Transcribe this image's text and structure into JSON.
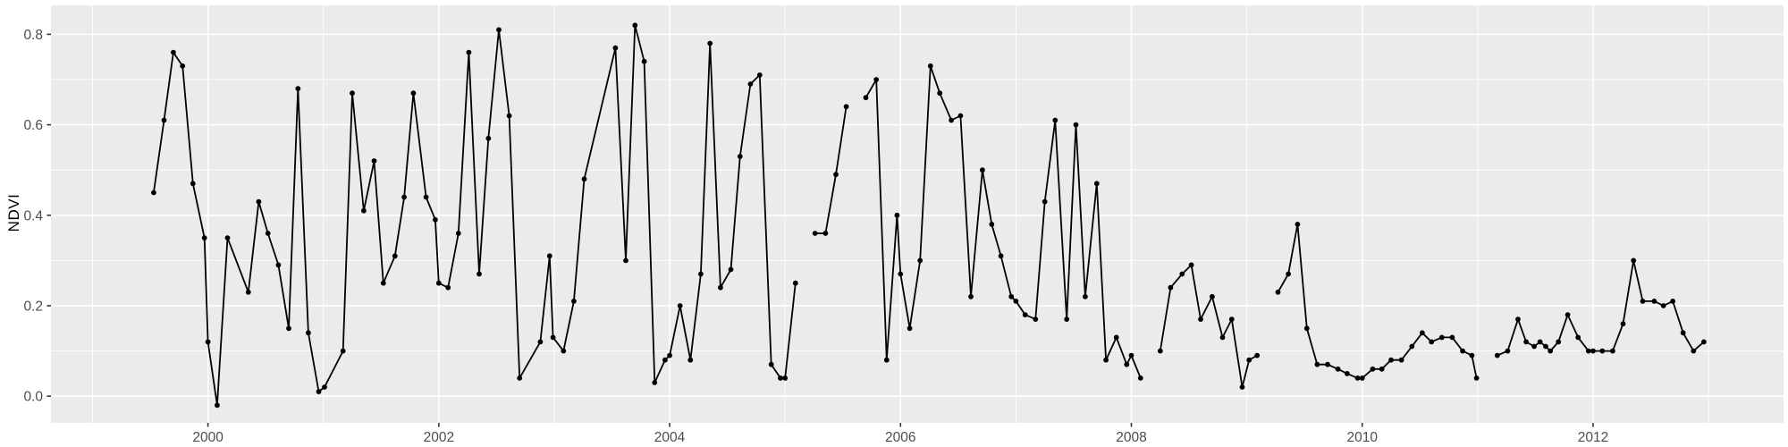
{
  "chart_data": {
    "type": "line",
    "title": "",
    "xlabel": "",
    "ylabel": "NDVI",
    "legend": false,
    "grid": true,
    "style": "ggplot2-gray-panel",
    "panel_background": "#EBEBEB",
    "grid_major_color": "#FFFFFF",
    "grid_minor_color": "#FFFFFF",
    "tick_mark_color": "#333333",
    "tick_label_color": "#4D4D4D",
    "axis_title_color": "#000000",
    "point_color": "#000000",
    "line_color": "#000000",
    "xlim": [
      1998.64,
      2013.65
    ],
    "ylim": [
      -0.059,
      0.864
    ],
    "x_ticks": [
      2000,
      2002,
      2004,
      2006,
      2008,
      2010,
      2012
    ],
    "x_tick_labels": [
      "2000",
      "2002",
      "2004",
      "2006",
      "2008",
      "2010",
      "2012"
    ],
    "x_minor_ticks": [
      1999,
      2001,
      2003,
      2005,
      2007,
      2009,
      2011,
      2013
    ],
    "y_ticks": [
      0.0,
      0.2,
      0.4,
      0.6,
      0.8
    ],
    "y_tick_labels": [
      "0.0",
      "0.2",
      "0.4",
      "0.6",
      "0.8"
    ],
    "y_minor_ticks": [
      0.1,
      0.3,
      0.5,
      0.7
    ],
    "series": [
      {
        "name": "NDVI",
        "segments": [
          [
            [
              1999.53,
              0.45
            ],
            [
              1999.62,
              0.61
            ],
            [
              1999.7,
              0.76
            ],
            [
              1999.78,
              0.73
            ],
            [
              1999.87,
              0.47
            ],
            [
              1999.97,
              0.35
            ],
            [
              2000.0,
              0.12
            ],
            [
              2000.08,
              -0.02
            ],
            [
              2000.17,
              0.35
            ],
            [
              2000.35,
              0.23
            ],
            [
              2000.44,
              0.43
            ],
            [
              2000.52,
              0.36
            ],
            [
              2000.61,
              0.29
            ],
            [
              2000.7,
              0.15
            ],
            [
              2000.78,
              0.68
            ],
            [
              2000.87,
              0.14
            ],
            [
              2000.96,
              0.01
            ],
            [
              2001.01,
              0.02
            ],
            [
              2001.17,
              0.1
            ],
            [
              2001.25,
              0.67
            ],
            [
              2001.35,
              0.41
            ],
            [
              2001.44,
              0.52
            ],
            [
              2001.52,
              0.25
            ],
            [
              2001.62,
              0.31
            ],
            [
              2001.7,
              0.44
            ],
            [
              2001.78,
              0.67
            ],
            [
              2001.89,
              0.44
            ],
            [
              2001.97,
              0.39
            ],
            [
              2002.0,
              0.25
            ],
            [
              2002.08,
              0.24
            ],
            [
              2002.17,
              0.36
            ],
            [
              2002.26,
              0.76
            ],
            [
              2002.35,
              0.27
            ],
            [
              2002.43,
              0.57
            ],
            [
              2002.52,
              0.81
            ],
            [
              2002.61,
              0.62
            ],
            [
              2002.7,
              0.04
            ],
            [
              2002.88,
              0.12
            ],
            [
              2002.96,
              0.31
            ],
            [
              2002.99,
              0.13
            ],
            [
              2003.08,
              0.1
            ],
            [
              2003.17,
              0.21
            ],
            [
              2003.26,
              0.48
            ],
            [
              2003.53,
              0.77
            ],
            [
              2003.62,
              0.3
            ],
            [
              2003.7,
              0.82
            ],
            [
              2003.78,
              0.74
            ],
            [
              2003.87,
              0.03
            ],
            [
              2003.96,
              0.08
            ],
            [
              2004.0,
              0.09
            ],
            [
              2004.09,
              0.2
            ],
            [
              2004.18,
              0.08
            ],
            [
              2004.27,
              0.27
            ],
            [
              2004.35,
              0.78
            ],
            [
              2004.44,
              0.24
            ],
            [
              2004.53,
              0.28
            ],
            [
              2004.61,
              0.53
            ],
            [
              2004.7,
              0.69
            ],
            [
              2004.78,
              0.71
            ],
            [
              2004.88,
              0.07
            ],
            [
              2004.96,
              0.04
            ],
            [
              2005.0,
              0.04
            ],
            [
              2005.09,
              0.25
            ]
          ],
          [
            [
              2005.26,
              0.36
            ],
            [
              2005.35,
              0.36
            ],
            [
              2005.44,
              0.49
            ],
            [
              2005.53,
              0.64
            ]
          ],
          [
            [
              2005.7,
              0.66
            ],
            [
              2005.79,
              0.7
            ],
            [
              2005.88,
              0.08
            ],
            [
              2005.97,
              0.4
            ],
            [
              2006.0,
              0.27
            ],
            [
              2006.08,
              0.15
            ],
            [
              2006.17,
              0.3
            ],
            [
              2006.26,
              0.73
            ],
            [
              2006.34,
              0.67
            ],
            [
              2006.44,
              0.61
            ],
            [
              2006.52,
              0.62
            ],
            [
              2006.61,
              0.22
            ],
            [
              2006.71,
              0.5
            ],
            [
              2006.79,
              0.38
            ],
            [
              2006.87,
              0.31
            ],
            [
              2006.96,
              0.22
            ],
            [
              2007.0,
              0.21
            ],
            [
              2007.08,
              0.18
            ],
            [
              2007.17,
              0.17
            ],
            [
              2007.25,
              0.43
            ],
            [
              2007.34,
              0.61
            ],
            [
              2007.44,
              0.17
            ],
            [
              2007.52,
              0.6
            ],
            [
              2007.6,
              0.22
            ],
            [
              2007.7,
              0.47
            ],
            [
              2007.78,
              0.08
            ],
            [
              2007.87,
              0.13
            ],
            [
              2007.96,
              0.07
            ],
            [
              2008.0,
              0.09
            ],
            [
              2008.08,
              0.04
            ]
          ],
          [
            [
              2008.25,
              0.1
            ],
            [
              2008.34,
              0.24
            ],
            [
              2008.44,
              0.27
            ],
            [
              2008.52,
              0.29
            ],
            [
              2008.6,
              0.17
            ],
            [
              2008.7,
              0.22
            ],
            [
              2008.79,
              0.13
            ],
            [
              2008.87,
              0.17
            ],
            [
              2008.96,
              0.02
            ],
            [
              2009.02,
              0.08
            ],
            [
              2009.09,
              0.09
            ]
          ],
          [
            [
              2009.27,
              0.23
            ],
            [
              2009.36,
              0.27
            ],
            [
              2009.44,
              0.38
            ],
            [
              2009.52,
              0.15
            ],
            [
              2009.61,
              0.07
            ],
            [
              2009.7,
              0.07
            ],
            [
              2009.79,
              0.06
            ],
            [
              2009.87,
              0.05
            ],
            [
              2009.96,
              0.04
            ],
            [
              2010.0,
              0.04
            ],
            [
              2010.09,
              0.06
            ],
            [
              2010.17,
              0.06
            ],
            [
              2010.25,
              0.08
            ],
            [
              2010.34,
              0.08
            ],
            [
              2010.43,
              0.11
            ],
            [
              2010.52,
              0.14
            ],
            [
              2010.6,
              0.12
            ],
            [
              2010.69,
              0.13
            ],
            [
              2010.78,
              0.13
            ],
            [
              2010.87,
              0.1
            ],
            [
              2010.95,
              0.09
            ],
            [
              2010.99,
              0.04
            ]
          ],
          [
            [
              2011.17,
              0.09
            ],
            [
              2011.26,
              0.1
            ],
            [
              2011.35,
              0.17
            ],
            [
              2011.42,
              0.12
            ],
            [
              2011.49,
              0.11
            ],
            [
              2011.54,
              0.12
            ],
            [
              2011.59,
              0.11
            ],
            [
              2011.63,
              0.1
            ],
            [
              2011.7,
              0.12
            ],
            [
              2011.78,
              0.18
            ],
            [
              2011.87,
              0.13
            ],
            [
              2011.96,
              0.1
            ],
            [
              2012.0,
              0.1
            ],
            [
              2012.08,
              0.1
            ],
            [
              2012.17,
              0.1
            ],
            [
              2012.26,
              0.16
            ],
            [
              2012.35,
              0.3
            ],
            [
              2012.43,
              0.21
            ],
            [
              2012.53,
              0.21
            ],
            [
              2012.61,
              0.2
            ],
            [
              2012.69,
              0.21
            ],
            [
              2012.78,
              0.14
            ],
            [
              2012.87,
              0.1
            ],
            [
              2012.96,
              0.12
            ]
          ]
        ]
      }
    ]
  }
}
